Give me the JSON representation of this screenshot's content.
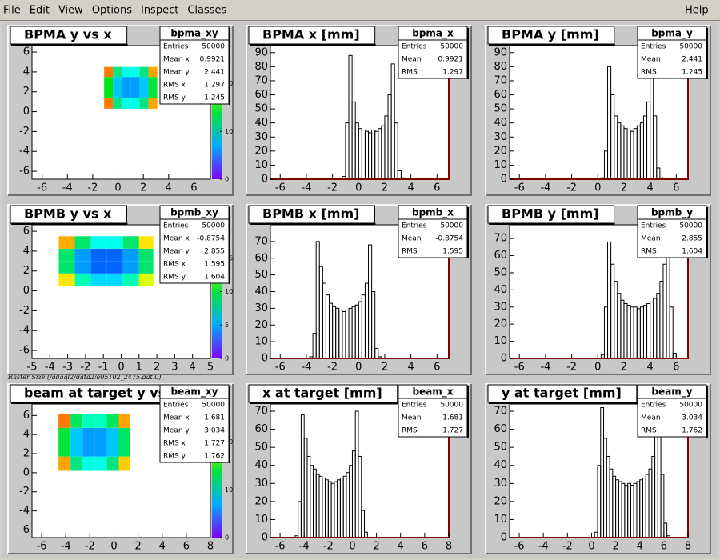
{
  "menu": {
    "items": [
      "File",
      "Edit",
      "View",
      "Options",
      "Inspect",
      "Classes"
    ],
    "help": "Help"
  },
  "note": "Raster Size (/adaql2/data2/e05102_2475.dat.0)",
  "chart_data": [
    {
      "type": "heatmap2d",
      "title": "BPMA y vs x",
      "stats": {
        "name": "bpma_xy",
        "rows": [
          {
            "label": "Entries",
            "value": 50000
          },
          {
            "label": "Mean x",
            "value": 0.9921
          },
          {
            "label": "Mean y",
            "value": 2.441
          },
          {
            "label": "RMS x",
            "value": 1.297
          },
          {
            "label": "RMS y",
            "value": 1.245
          }
        ]
      },
      "xlim": [
        -6.8,
        7.3
      ],
      "ylim": [
        -6.8,
        6.65
      ],
      "xticks": [
        -6,
        -4,
        -2,
        0,
        2,
        4,
        6
      ],
      "yticks": [
        -6,
        -4,
        -2,
        0,
        2,
        4,
        6
      ],
      "xbins": [
        -1.1,
        -0.4,
        0.3,
        1.0,
        1.7,
        2.4,
        3.1
      ],
      "ybins": [
        0.3,
        1.4,
        2.5,
        3.5,
        4.5
      ],
      "counts": [
        [
          25,
          12,
          10,
          10,
          12,
          24
        ],
        [
          15,
          8,
          7,
          7,
          8,
          14
        ],
        [
          15,
          8,
          7,
          7,
          8,
          14
        ],
        [
          25,
          12,
          10,
          10,
          12,
          24
        ]
      ],
      "zlim": [
        0,
        28
      ],
      "zticks": [
        0,
        10,
        20
      ]
    },
    {
      "type": "histogram",
      "title": "BPMA x [mm]",
      "color": "#000000",
      "stats": {
        "name": "bpma_x",
        "rows": [
          {
            "label": "Entries",
            "value": 50000
          },
          {
            "label": "Mean",
            "value": 0.9921
          },
          {
            "label": "RMS",
            "value": 1.297
          }
        ]
      },
      "xlim": [
        -6.75,
        6.9
      ],
      "ylim": [
        0,
        95
      ],
      "xticks": [
        -6,
        -4,
        -2,
        0,
        2,
        4,
        6
      ],
      "yticks": [
        0,
        10,
        20,
        30,
        40,
        50,
        60,
        70,
        80,
        90
      ],
      "bins": [
        -1.25,
        -1,
        -0.75,
        -0.5,
        -0.25,
        0,
        0.25,
        0.5,
        0.75,
        1,
        1.25,
        1.5,
        1.75,
        2,
        2.25,
        2.5,
        2.75,
        3,
        3.25,
        3.5
      ],
      "counts": [
        2,
        40,
        88,
        55,
        40,
        36,
        35,
        34,
        33,
        35,
        34,
        36,
        38,
        45,
        60,
        82,
        40,
        6,
        1
      ]
    },
    {
      "type": "histogram",
      "title": "BPMA y [mm]",
      "color": "#000000",
      "stats": {
        "name": "bpma_y",
        "rows": [
          {
            "label": "Entries",
            "value": 50000
          },
          {
            "label": "Mean",
            "value": 2.441
          },
          {
            "label": "RMS",
            "value": 1.245
          }
        ]
      },
      "xlim": [
        -6.75,
        6.9
      ],
      "ylim": [
        0,
        95
      ],
      "xticks": [
        -6,
        -4,
        -2,
        0,
        2,
        4,
        6
      ],
      "yticks": [
        0,
        10,
        20,
        30,
        40,
        50,
        60,
        70,
        80,
        90
      ],
      "bins": [
        0.25,
        0.5,
        0.75,
        1,
        1.25,
        1.5,
        1.75,
        2,
        2.25,
        2.5,
        2.75,
        3,
        3.25,
        3.5,
        3.75,
        4,
        4.25,
        4.5,
        4.75,
        5
      ],
      "counts": [
        1,
        20,
        80,
        60,
        45,
        40,
        38,
        36,
        35,
        34,
        36,
        38,
        40,
        45,
        55,
        75,
        45,
        8,
        1
      ]
    },
    {
      "type": "heatmap2d",
      "title": "BPMB y vs x",
      "stats": {
        "name": "bpmb_xy",
        "rows": [
          {
            "label": "Entries",
            "value": 50000
          },
          {
            "label": "Mean x",
            "value": -0.8754
          },
          {
            "label": "Mean y",
            "value": 2.855
          },
          {
            "label": "RMS x",
            "value": 1.595
          },
          {
            "label": "RMS y",
            "value": 1.604
          }
        ]
      },
      "xlim": [
        -5,
        5
      ],
      "ylim": [
        -6.8,
        6.65
      ],
      "xticks": [
        -5,
        -4,
        -3,
        -2,
        -1,
        0,
        1,
        2,
        3,
        4,
        5
      ],
      "yticks": [
        -6,
        -4,
        -2,
        0,
        2,
        4,
        6
      ],
      "xbins": [
        -3.5,
        -2.6,
        -1.7,
        -0.8,
        0.1,
        1.0,
        1.8
      ],
      "ybins": [
        0.5,
        1.75,
        3.0,
        4.25,
        5.5
      ],
      "counts": [
        [
          16,
          8,
          6,
          6,
          8,
          15
        ],
        [
          9,
          5,
          4,
          4,
          5,
          9
        ],
        [
          9,
          5,
          4,
          4,
          5,
          9
        ],
        [
          17,
          9,
          7,
          7,
          9,
          16
        ]
      ],
      "zlim": [
        0,
        20
      ],
      "zticks": [
        0,
        5,
        10,
        15
      ]
    },
    {
      "type": "histogram",
      "title": "BPMB x [mm]",
      "color": "#000000",
      "stats": {
        "name": "bpmb_x",
        "rows": [
          {
            "label": "Entries",
            "value": 50000
          },
          {
            "label": "Mean",
            "value": -0.8754
          },
          {
            "label": "RMS",
            "value": 1.595
          }
        ]
      },
      "xlim": [
        -6.75,
        6.9
      ],
      "ylim": [
        0,
        80
      ],
      "xticks": [
        -6,
        -4,
        -2,
        0,
        2,
        4,
        6
      ],
      "yticks": [
        0,
        10,
        20,
        30,
        40,
        50,
        60,
        70
      ],
      "bins": [
        -3.75,
        -3.5,
        -3.25,
        -3,
        -2.75,
        -2.5,
        -2.25,
        -2,
        -1.75,
        -1.5,
        -1.25,
        -1,
        -0.75,
        -0.5,
        -0.25,
        0,
        0.25,
        0.5,
        0.75,
        1,
        1.25,
        1.5,
        1.75,
        2
      ],
      "counts": [
        1,
        15,
        70,
        55,
        45,
        38,
        33,
        31,
        30,
        29,
        28,
        29,
        30,
        31,
        32,
        34,
        38,
        45,
        68,
        40,
        6,
        1,
        0
      ]
    },
    {
      "type": "histogram",
      "title": "BPMB y [mm]",
      "color": "#000000",
      "stats": {
        "name": "bpmb_y",
        "rows": [
          {
            "label": "Entries",
            "value": 50000
          },
          {
            "label": "Mean",
            "value": 2.855
          },
          {
            "label": "RMS",
            "value": 1.604
          }
        ]
      },
      "xlim": [
        -6.75,
        6.9
      ],
      "ylim": [
        0,
        78
      ],
      "xticks": [
        -6,
        -4,
        -2,
        0,
        2,
        4,
        6
      ],
      "yticks": [
        0,
        10,
        20,
        30,
        40,
        50,
        60,
        70
      ],
      "bins": [
        0.25,
        0.5,
        0.75,
        1,
        1.25,
        1.5,
        1.75,
        2,
        2.25,
        2.5,
        2.75,
        3,
        3.25,
        3.5,
        3.75,
        4,
        4.25,
        4.5,
        4.75,
        5,
        5.25,
        5.5,
        5.75,
        6
      ],
      "counts": [
        2,
        30,
        68,
        55,
        45,
        38,
        34,
        32,
        31,
        30,
        30,
        29,
        30,
        31,
        32,
        33,
        35,
        38,
        45,
        55,
        72,
        30,
        3
      ]
    },
    {
      "type": "heatmap2d",
      "title": "beam at target y vs x",
      "stats": {
        "name": "beam_xy",
        "rows": [
          {
            "label": "Entries",
            "value": 50000
          },
          {
            "label": "Mean x",
            "value": -1.681
          },
          {
            "label": "Mean y",
            "value": 3.034
          },
          {
            "label": "RMS x",
            "value": 1.727
          },
          {
            "label": "RMS y",
            "value": 1.762
          }
        ]
      },
      "xlim": [
        -6.8,
        8
      ],
      "ylim": [
        -6.8,
        7.2
      ],
      "xticks": [
        -6,
        -4,
        -2,
        0,
        2,
        4,
        6,
        8
      ],
      "yticks": [
        -6,
        -4,
        -2,
        0,
        2,
        4,
        6
      ],
      "xbins": [
        -4.6,
        -3.6,
        -2.6,
        -1.6,
        -0.6,
        0.4,
        1.3
      ],
      "ybins": [
        0.2,
        1.7,
        3.2,
        4.7,
        6.2
      ],
      "counts": [
        [
          24,
          12,
          10,
          10,
          12,
          23
        ],
        [
          14,
          8,
          7,
          7,
          8,
          13
        ],
        [
          14,
          8,
          7,
          7,
          8,
          13
        ],
        [
          25,
          13,
          11,
          11,
          13,
          24
        ]
      ],
      "zlim": [
        0,
        28
      ],
      "zticks": [
        0,
        10,
        20
      ]
    },
    {
      "type": "histogram",
      "title": "x at target [mm]",
      "color": "#000000",
      "stats": {
        "name": "beam_x",
        "rows": [
          {
            "label": "Entries",
            "value": 50000
          },
          {
            "label": "Mean",
            "value": -1.681
          },
          {
            "label": "RMS",
            "value": 1.727
          }
        ]
      },
      "xlim": [
        -6.8,
        8
      ],
      "ylim": [
        0,
        74
      ],
      "xticks": [
        -6,
        -4,
        -2,
        0,
        2,
        4,
        6,
        8
      ],
      "yticks": [
        0,
        10,
        20,
        30,
        40,
        50,
        60,
        70
      ],
      "bins": [
        -4.75,
        -4.5,
        -4.25,
        -4,
        -3.75,
        -3.5,
        -3.25,
        -3,
        -2.75,
        -2.5,
        -2.25,
        -2,
        -1.75,
        -1.5,
        -1.25,
        -1,
        -0.75,
        -0.5,
        -0.25,
        0,
        0.25,
        0.5,
        0.75,
        1,
        1.25,
        1.5
      ],
      "counts": [
        1,
        20,
        68,
        55,
        45,
        40,
        38,
        35,
        34,
        33,
        32,
        31,
        30,
        31,
        32,
        33,
        34,
        36,
        40,
        48,
        70,
        45,
        15,
        3,
        0
      ]
    },
    {
      "type": "histogram",
      "title": "y at target [mm]",
      "color": "#000000",
      "stats": {
        "name": "beam_y",
        "rows": [
          {
            "label": "Entries",
            "value": 50000
          },
          {
            "label": "Mean",
            "value": 3.034
          },
          {
            "label": "RMS",
            "value": 1.762
          }
        ]
      },
      "xlim": [
        -6.8,
        8
      ],
      "ylim": [
        0,
        74
      ],
      "xticks": [
        -6,
        -4,
        -2,
        0,
        2,
        4,
        6,
        8
      ],
      "yticks": [
        0,
        10,
        20,
        30,
        40,
        50,
        60,
        70
      ],
      "bins": [
        0.25,
        0.5,
        0.75,
        1,
        1.25,
        1.5,
        1.75,
        2,
        2.25,
        2.5,
        2.75,
        3,
        3.25,
        3.5,
        3.75,
        4,
        4.25,
        4.5,
        4.75,
        5,
        5.25,
        5.5,
        5.75,
        6,
        6.25,
        6.5
      ],
      "counts": [
        3,
        40,
        72,
        55,
        45,
        38,
        34,
        32,
        31,
        30,
        29,
        30,
        29,
        30,
        31,
        32,
        33,
        35,
        38,
        45,
        58,
        70,
        35,
        8,
        1
      ]
    }
  ]
}
